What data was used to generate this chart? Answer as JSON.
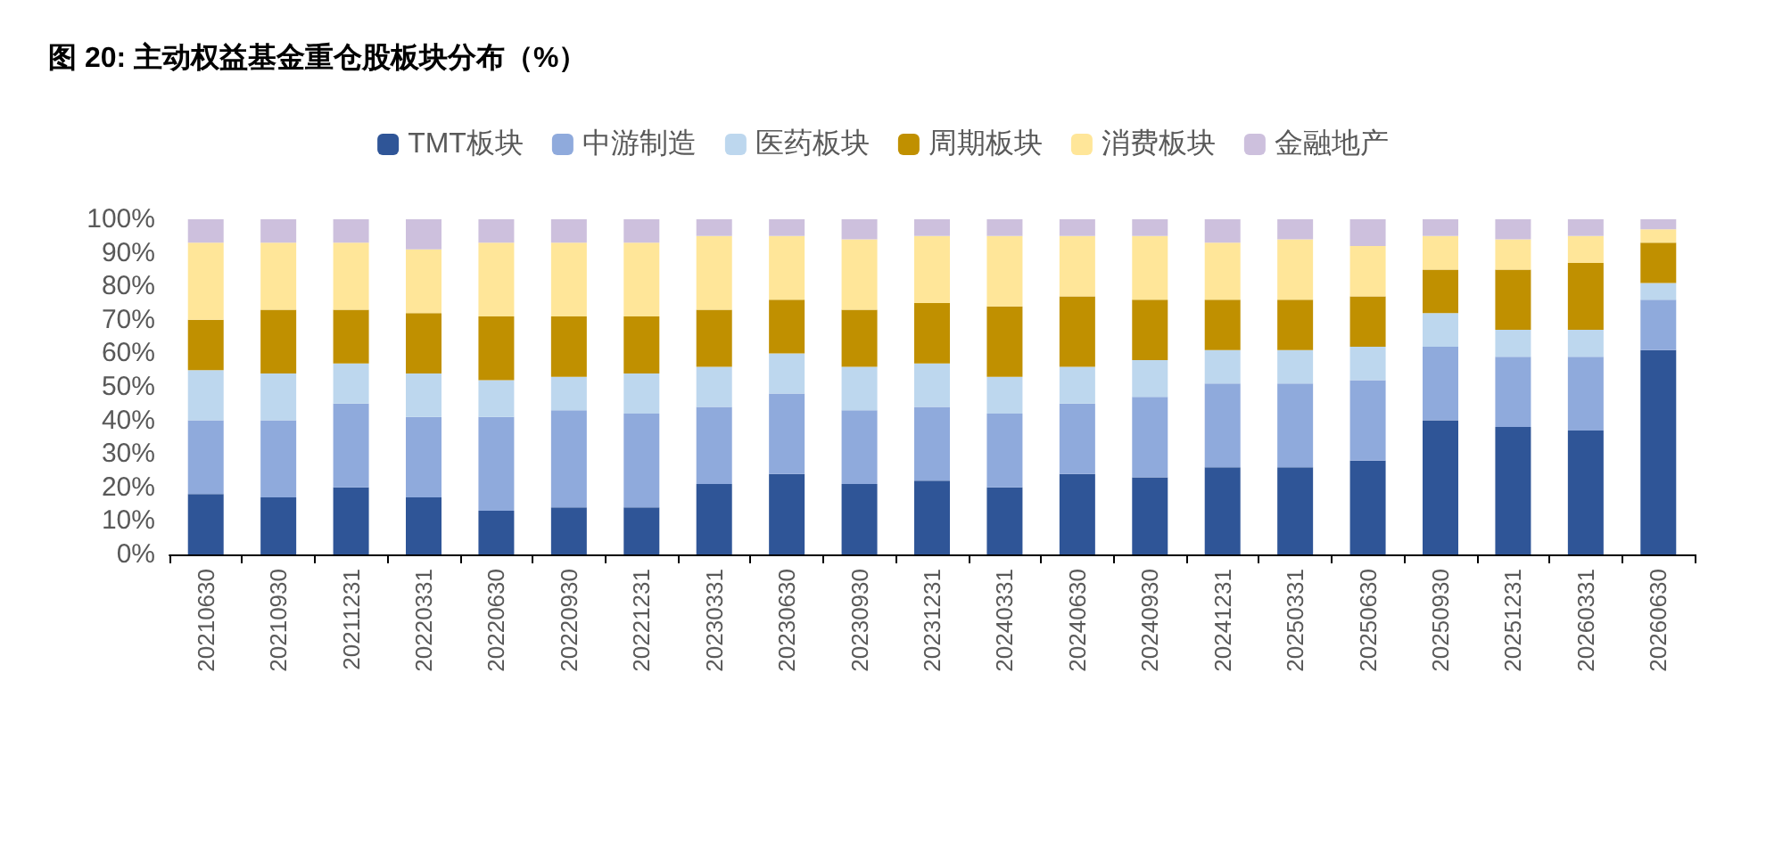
{
  "chart_data": {
    "type": "bar",
    "stacked": true,
    "title": "图 20: 主动权益基金重仓股板块分布（%）",
    "categories": [
      "20210630",
      "20210930",
      "20211231",
      "20220331",
      "20220630",
      "20220930",
      "20221231",
      "20230331",
      "20230630",
      "20230930",
      "20231231",
      "20240331",
      "20240630",
      "20240930",
      "20241231",
      "20250331",
      "20250630",
      "20250930",
      "20251231",
      "20260331",
      "20260630"
    ],
    "series": [
      {
        "name": "TMT板块",
        "color": "#2f5597",
        "values": [
          18,
          17,
          20,
          17,
          13,
          14,
          14,
          21,
          24,
          21,
          22,
          20,
          24,
          23,
          26,
          26,
          28,
          40,
          38,
          37,
          61
        ]
      },
      {
        "name": "中游制造",
        "color": "#8faadc",
        "values": [
          22,
          23,
          25,
          24,
          28,
          29,
          28,
          23,
          24,
          22,
          22,
          22,
          21,
          24,
          25,
          25,
          24,
          22,
          21,
          22,
          15
        ]
      },
      {
        "name": "医药板块",
        "color": "#bdd7ee",
        "values": [
          15,
          14,
          12,
          13,
          11,
          10,
          12,
          12,
          12,
          13,
          13,
          11,
          11,
          11,
          10,
          10,
          10,
          10,
          8,
          8,
          5
        ]
      },
      {
        "name": "周期板块",
        "color": "#c09000",
        "values": [
          15,
          19,
          16,
          18,
          19,
          18,
          17,
          17,
          16,
          17,
          18,
          21,
          21,
          18,
          15,
          15,
          15,
          13,
          18,
          20,
          12
        ]
      },
      {
        "name": "消费板块",
        "color": "#ffe699",
        "values": [
          23,
          20,
          20,
          19,
          22,
          22,
          22,
          22,
          19,
          21,
          20,
          21,
          18,
          19,
          17,
          18,
          15,
          10,
          9,
          8,
          4
        ]
      },
      {
        "name": "金融地产",
        "color": "#cdc0dd",
        "values": [
          7,
          7,
          7,
          9,
          7,
          7,
          7,
          5,
          5,
          6,
          5,
          5,
          5,
          5,
          7,
          6,
          8,
          5,
          6,
          5,
          3
        ]
      }
    ],
    "ylim": [
      0,
      100
    ],
    "yticks": [
      {
        "value": 0,
        "label": "0%"
      },
      {
        "value": 10,
        "label": "10%"
      },
      {
        "value": 20,
        "label": "20%"
      },
      {
        "value": 30,
        "label": "30%"
      },
      {
        "value": 40,
        "label": "40%"
      },
      {
        "value": 50,
        "label": "50%"
      },
      {
        "value": 60,
        "label": "60%"
      },
      {
        "value": 70,
        "label": "70%"
      },
      {
        "value": 80,
        "label": "80%"
      },
      {
        "value": 90,
        "label": "90%"
      },
      {
        "value": 100,
        "label": "100%"
      }
    ],
    "grid": false,
    "legend": "top"
  }
}
